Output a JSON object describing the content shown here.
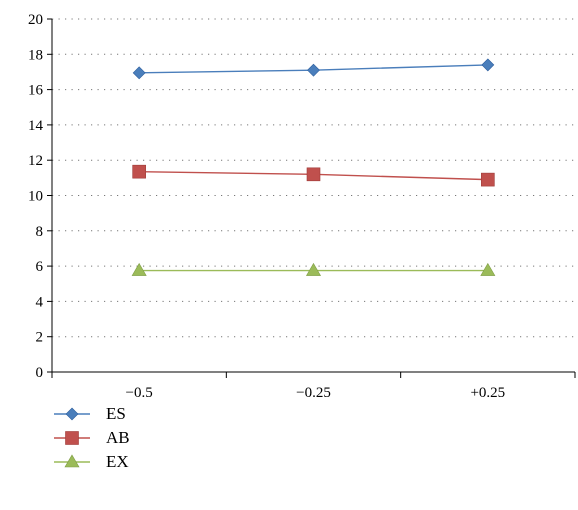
{
  "chart_data": {
    "type": "line",
    "categories": [
      "−0.5",
      "−0.25",
      "+0.25"
    ],
    "ylim": [
      0,
      20
    ],
    "yticks": [
      0,
      2,
      4,
      6,
      8,
      10,
      12,
      14,
      16,
      18,
      20
    ],
    "grid": "horizontal dotted",
    "legend_position": "bottom-left",
    "series": [
      {
        "name": "ES",
        "values": [
          16.95,
          17.1,
          17.4
        ],
        "color": "#4a7ebb",
        "marker": "diamond"
      },
      {
        "name": "AB",
        "values": [
          11.35,
          11.2,
          10.9
        ],
        "color": "#c0504d",
        "marker": "square"
      },
      {
        "name": "EX",
        "values": [
          5.75,
          5.75,
          5.75
        ],
        "color": "#9bbb59",
        "marker": "triangle"
      }
    ]
  }
}
